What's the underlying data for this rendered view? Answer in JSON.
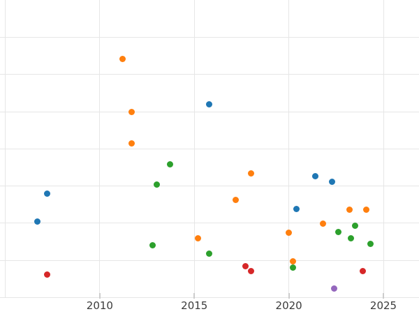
{
  "chart_data": {
    "type": "scatter",
    "title": "",
    "xlabel": "",
    "ylabel": "",
    "grid": true,
    "legend": "none visible",
    "background_color": "#ffffff",
    "grid_color": "#e6e6e6",
    "tick_label_color": "#3b3b3b",
    "tick_mark_color": "#cccccc",
    "x_axis": {
      "range": [
        2004.7,
        2026.9
      ],
      "gridline_years": [
        2005,
        2010,
        2015,
        2020,
        2025
      ],
      "ticks": [
        {
          "value": 2010,
          "label": "2010"
        },
        {
          "value": 2015,
          "label": "2015"
        },
        {
          "value": 2020,
          "label": "2020"
        },
        {
          "value": 2025,
          "label": "2025"
        }
      ]
    },
    "y_axis": {
      "visible_range": [
        0,
        8
      ],
      "gridline_units": [
        0,
        1,
        2,
        3,
        4,
        5,
        6,
        7
      ],
      "tick_labels_visible": false
    },
    "series": [
      {
        "name": "blue",
        "color": "#1f77b4",
        "points": [
          [
            2006.7,
            2.04
          ],
          [
            2007.2,
            2.8
          ],
          [
            2015.8,
            5.19
          ],
          [
            2020.4,
            2.38
          ],
          [
            2021.4,
            3.27
          ],
          [
            2022.3,
            3.11
          ]
        ]
      },
      {
        "name": "orange",
        "color": "#ff7f0e",
        "points": [
          [
            2011.2,
            6.41
          ],
          [
            2011.7,
            5.0
          ],
          [
            2011.7,
            4.14
          ],
          [
            2015.2,
            1.59
          ],
          [
            2017.2,
            2.63
          ],
          [
            2018.0,
            3.34
          ],
          [
            2020.0,
            1.74
          ],
          [
            2020.2,
            0.98
          ],
          [
            2021.8,
            1.98
          ],
          [
            2023.2,
            2.37
          ],
          [
            2024.1,
            2.37
          ]
        ]
      },
      {
        "name": "green",
        "color": "#2ca02c",
        "points": [
          [
            2012.8,
            1.41
          ],
          [
            2013.0,
            3.04
          ],
          [
            2013.7,
            3.59
          ],
          [
            2015.8,
            1.19
          ],
          [
            2020.2,
            0.8
          ],
          [
            2022.6,
            1.77
          ],
          [
            2023.3,
            1.59
          ],
          [
            2023.5,
            1.94
          ],
          [
            2024.3,
            1.44
          ]
        ]
      },
      {
        "name": "red",
        "color": "#d62728",
        "points": [
          [
            2007.2,
            0.62
          ],
          [
            2017.7,
            0.85
          ],
          [
            2018.0,
            0.71
          ],
          [
            2023.9,
            0.71
          ]
        ]
      },
      {
        "name": "purple",
        "color": "#9467bd",
        "points": [
          [
            2022.4,
            0.24
          ]
        ]
      }
    ]
  }
}
